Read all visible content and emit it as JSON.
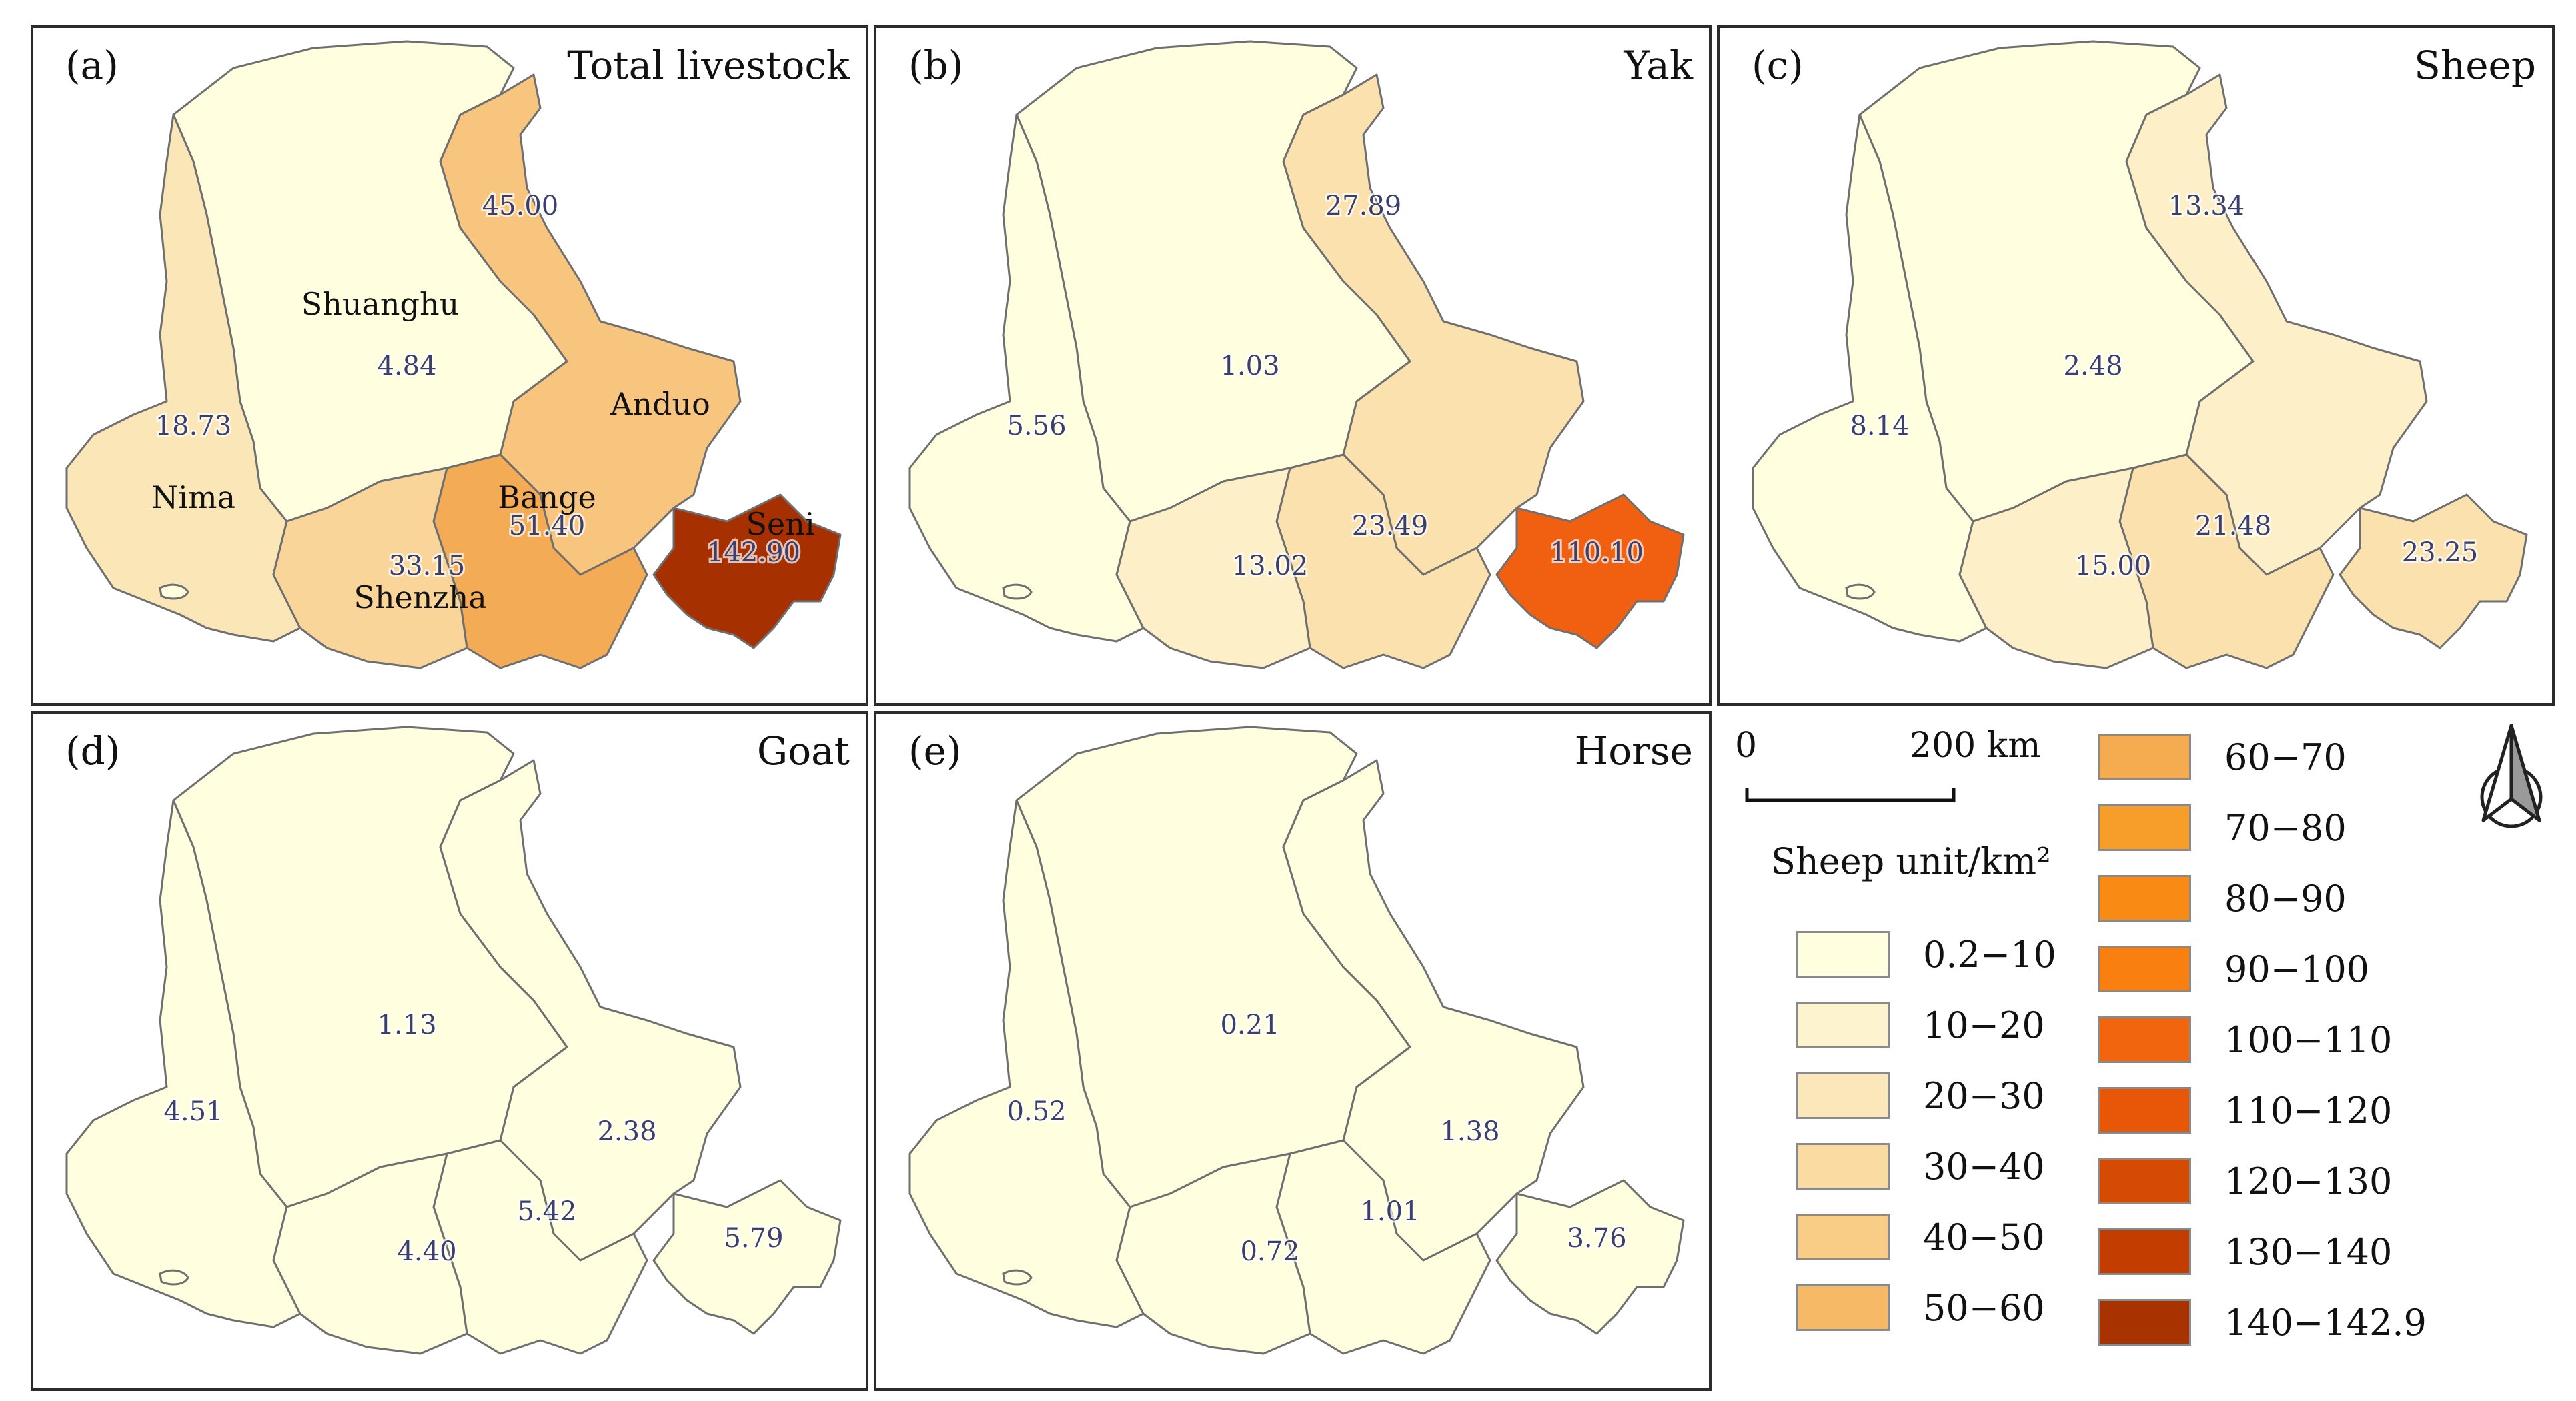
{
  "panels": [
    {
      "label": "(a)",
      "title": "Total livestock",
      "values": {
        "nima": "18.73",
        "shuanghu": "4.84",
        "anduo": "45.00",
        "bange": "51.40",
        "shenzha": "33.15",
        "seni": "142.90"
      },
      "colors": {
        "nima": "#fbe6b8",
        "shuanghu": "#ffffe0",
        "anduo": "#f8c57e",
        "bange": "#f4ab55",
        "shenzha": "#f9d59a",
        "seni": "#a63000"
      },
      "names": {
        "shuanghu": "Shuanghu",
        "nima": "Nima",
        "anduo": "Anduo",
        "bange": "Bange",
        "shenzha": "Shenzha",
        "seni": "Seni"
      }
    },
    {
      "label": "(b)",
      "title": "Yak",
      "values": {
        "nima": "5.56",
        "shuanghu": "1.03",
        "anduo": "27.89",
        "bange": "23.49",
        "shenzha": "13.02",
        "seni": "110.10"
      },
      "colors": {
        "nima": "#ffffe0",
        "shuanghu": "#ffffe0",
        "anduo": "#fbe1ad",
        "bange": "#fbe1ad",
        "shenzha": "#fdf0c9",
        "seni": "#f06010"
      }
    },
    {
      "label": "(c)",
      "title": "Sheep",
      "values": {
        "nima": "8.14",
        "shuanghu": "2.48",
        "anduo": "13.34",
        "bange": "21.48",
        "shenzha": "15.00",
        "seni": "23.25"
      },
      "colors": {
        "nima": "#ffffe0",
        "shuanghu": "#ffffe0",
        "anduo": "#fdf0c9",
        "bange": "#fbe1ad",
        "shenzha": "#fdf0c9",
        "seni": "#fbe1ad"
      }
    },
    {
      "label": "(d)",
      "title": "Goat",
      "values": {
        "nima": "4.51",
        "shuanghu": "1.13",
        "anduo": "2.38",
        "bange": "5.42",
        "shenzha": "4.40",
        "seni": "5.79"
      },
      "colors": {
        "nima": "#ffffe0",
        "shuanghu": "#ffffe0",
        "anduo": "#ffffe0",
        "bange": "#ffffe0",
        "shenzha": "#ffffe0",
        "seni": "#ffffe0"
      }
    },
    {
      "label": "(e)",
      "title": "Horse",
      "values": {
        "nima": "0.52",
        "shuanghu": "0.21",
        "anduo": "1.38",
        "bange": "1.01",
        "shenzha": "0.72",
        "seni": "3.76"
      },
      "colors": {
        "nima": "#ffffe0",
        "shuanghu": "#ffffe0",
        "anduo": "#ffffe0",
        "bange": "#ffffe0",
        "shenzha": "#ffffe0",
        "seni": "#ffffe0"
      }
    }
  ],
  "scalebar": {
    "zero": "0",
    "end": "200 km"
  },
  "legend": {
    "unit_label": "Sheep unit/km²",
    "classes": [
      {
        "label": "0.2−10",
        "color": "#ffffe0"
      },
      {
        "label": "10−20",
        "color": "#fdf3cf"
      },
      {
        "label": "20−30",
        "color": "#fce7bb"
      },
      {
        "label": "30−40",
        "color": "#fadca3"
      },
      {
        "label": "40−50",
        "color": "#f9cd85"
      },
      {
        "label": "50−60",
        "color": "#f6b966"
      },
      {
        "label": "60−70",
        "color": "#f5ab4f"
      },
      {
        "label": "70−80",
        "color": "#f79d2a"
      },
      {
        "label": "80−90",
        "color": "#f98b14"
      },
      {
        "label": "90−100",
        "color": "#f97f10"
      },
      {
        "label": "100−110",
        "color": "#f0650e"
      },
      {
        "label": "110−120",
        "color": "#e85708"
      },
      {
        "label": "120−130",
        "color": "#d64b03"
      },
      {
        "label": "130−140",
        "color": "#c43d00"
      },
      {
        "label": "140−142.9",
        "color": "#a83200"
      }
    ]
  },
  "north_arrow_icon": "north-arrow-icon"
}
